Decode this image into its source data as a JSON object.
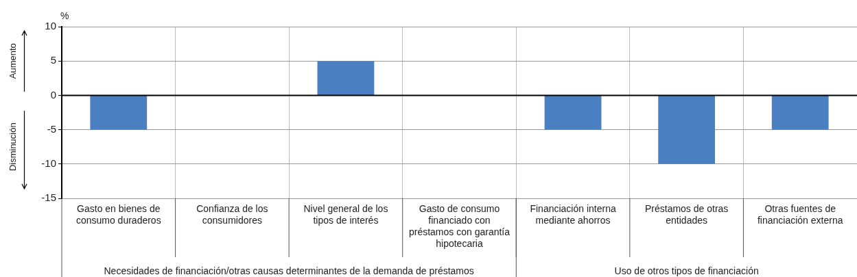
{
  "chart_data": {
    "type": "bar",
    "ylabel": "%",
    "categories": [
      "Gasto en bienes de consumo duraderos",
      "Confianza de los consumidores",
      "Nivel general de los tipos de interés",
      "Gasto de consumo financiado con préstamos con garantía hipotecaria",
      "Financiación interna mediante ahorros",
      "Préstamos de otras entidades",
      "Otras fuentes de financiación externa"
    ],
    "series": [
      {
        "color": "#4a7fc1",
        "values": [
          -5,
          0,
          5,
          0,
          -5,
          -10,
          -5
        ]
      }
    ],
    "ylim": [
      -15,
      10
    ],
    "yticks": [
      -15,
      -10,
      -5,
      0,
      5,
      10
    ],
    "grid": true,
    "annotations": [
      "Aumento",
      "Disminución",
      "Necesidades de financiación/otras causas determinantes de la demanda de préstamos",
      "Uso de otros tipos de financiación"
    ]
  }
}
